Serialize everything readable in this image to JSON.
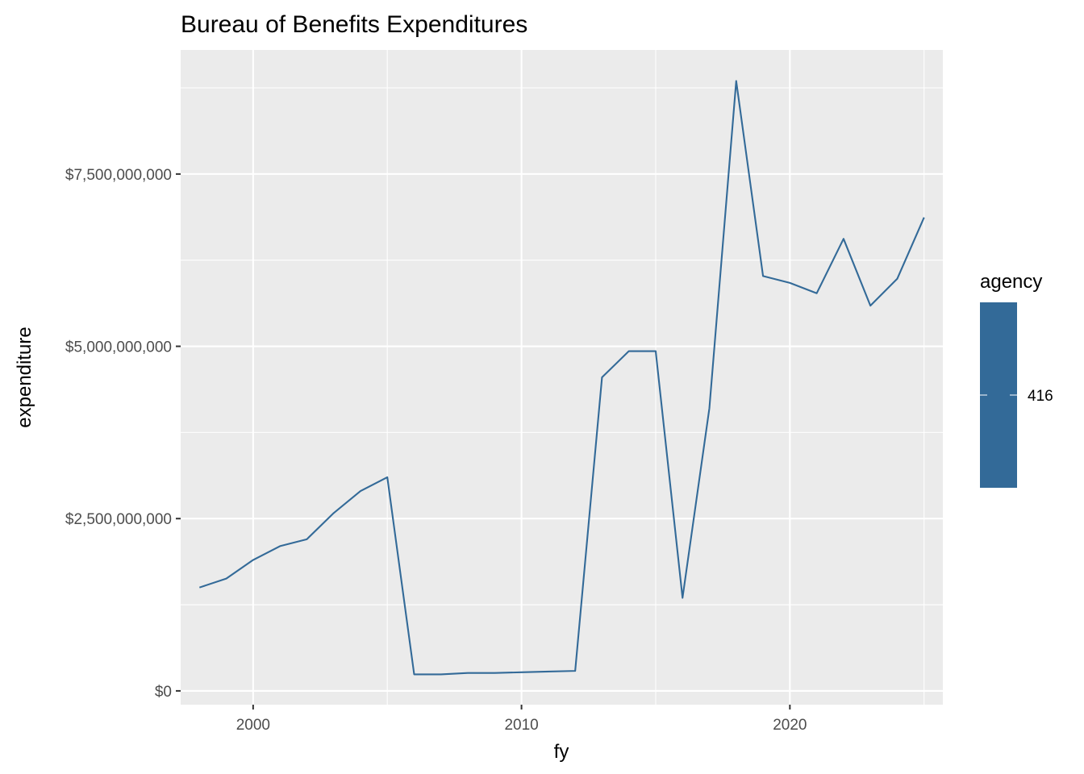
{
  "chart_data": {
    "type": "line",
    "title": "Bureau of Benefits Expenditures",
    "xlabel": "fy",
    "ylabel": "expenditure",
    "xlim": [
      1997.3,
      2025.7
    ],
    "ylim": [
      -200000000,
      9300000000
    ],
    "x_ticks": [
      2000,
      2010,
      2020
    ],
    "x_tick_labels": [
      "2000",
      "2010",
      "2020"
    ],
    "y_ticks": [
      0,
      2500000000,
      5000000000,
      7500000000
    ],
    "y_tick_labels": [
      "$0",
      "$2,500,000,000",
      "$5,000,000,000",
      "$7,500,000,000"
    ],
    "grid": true,
    "legend": {
      "title": "agency",
      "position": "right",
      "type": "colorbar",
      "label": "416"
    },
    "series": [
      {
        "name": "416",
        "color": "#336a98",
        "x": [
          1998,
          1999,
          2000,
          2001,
          2002,
          2003,
          2004,
          2005,
          2006,
          2007,
          2008,
          2009,
          2010,
          2011,
          2012,
          2013,
          2014,
          2015,
          2016,
          2017,
          2018,
          2019,
          2020,
          2021,
          2022,
          2023,
          2024,
          2025
        ],
        "y": [
          1500000000,
          1630000000,
          1900000000,
          2100000000,
          2200000000,
          2580000000,
          2900000000,
          3100000000,
          240000000,
          240000000,
          260000000,
          260000000,
          270000000,
          280000000,
          290000000,
          4550000000,
          4930000000,
          4930000000,
          1350000000,
          4100000000,
          8850000000,
          6020000000,
          5920000000,
          5770000000,
          6560000000,
          5590000000,
          5980000000,
          6870000000
        ]
      }
    ]
  }
}
